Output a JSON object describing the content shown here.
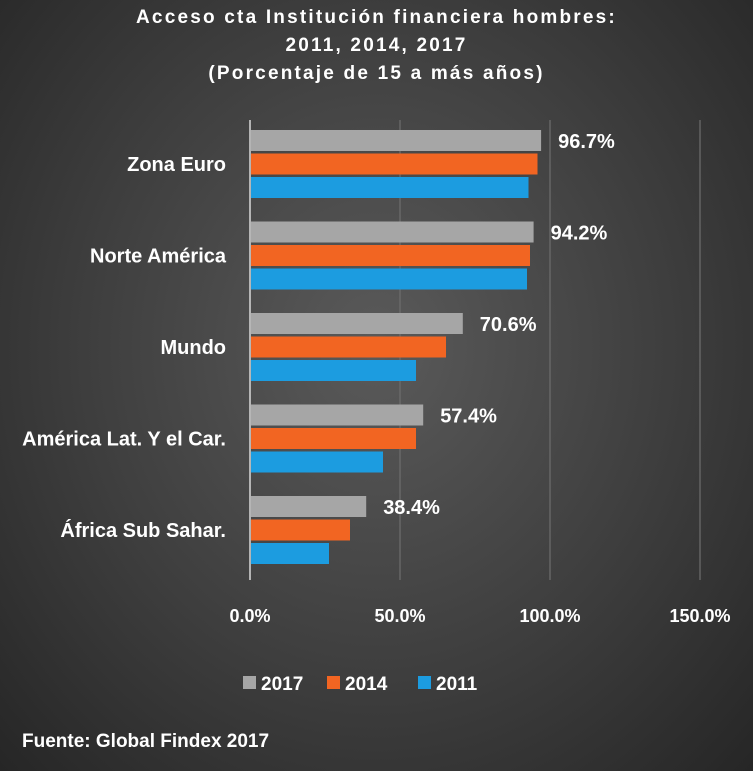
{
  "title_lines": [
    "Acceso cta Institución financiera hombres:",
    "2011, 2014, 2017",
    "(Porcentaje de 15 a más años)"
  ],
  "source": "Fuente: Global Findex 2017",
  "colors": {
    "2017": "#a6a6a6",
    "2014": "#f26522",
    "2011": "#1c9ce0",
    "gridline": "#6e6e6e",
    "axis": "#d9d9d9"
  },
  "chart_data": {
    "type": "bar",
    "orientation": "horizontal",
    "categories": [
      "Zona Euro",
      "Norte América",
      "Mundo",
      "América Lat. Y el Car.",
      "África Sub Sahar."
    ],
    "series": [
      {
        "name": "2017",
        "values": [
          96.7,
          94.2,
          70.6,
          57.4,
          38.4
        ]
      },
      {
        "name": "2014",
        "values": [
          95.5,
          93.0,
          65.0,
          55.0,
          33.0
        ]
      },
      {
        "name": "2011",
        "values": [
          92.5,
          92.0,
          55.0,
          44.0,
          26.0
        ]
      }
    ],
    "data_labels": [
      "96.7%",
      "94.2%",
      "70.6%",
      "57.4%",
      "38.4%"
    ],
    "x_ticks": [
      "0.0%",
      "50.0%",
      "100.0%",
      "150.0%"
    ],
    "xlim": [
      0,
      150
    ],
    "grid": true,
    "legend_position": "bottom",
    "legend": [
      "2017",
      "2014",
      "2011"
    ]
  }
}
